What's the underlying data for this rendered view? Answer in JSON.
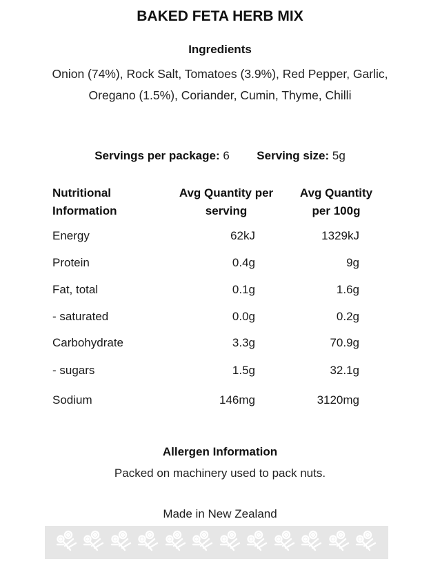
{
  "title": "BAKED FETA HERB MIX",
  "ingredients": {
    "heading": "Ingredients",
    "text": "Onion (74%), Rock Salt, Tomatoes (3.9%), Red Pepper, Garlic, Oregano (1.5%), Coriander, Cumin, Thyme, Chilli"
  },
  "servings": {
    "per_package_label": "Servings per package:",
    "per_package_value": "6",
    "size_label": "Serving size:",
    "size_value": "5g"
  },
  "nutrition": {
    "headers": [
      "Nutritional Information",
      "Avg Quantity per serving",
      "Avg Quantity per 100g"
    ],
    "rows": [
      {
        "name": "Energy",
        "per_serving": "62kJ",
        "per_100g": "1329kJ"
      },
      {
        "name": "Protein",
        "per_serving": "0.4g",
        "per_100g": "9g"
      },
      {
        "name": "Fat, total",
        "per_serving": "0.1g",
        "per_100g": "1.6g"
      },
      {
        "name": "- saturated",
        "per_serving": "0.0g",
        "per_100g": "0.2g"
      },
      {
        "name": "Carbohydrate",
        "per_serving": "3.3g",
        "per_100g": "70.9g"
      },
      {
        "name": "- sugars",
        "per_serving": "1.5g",
        "per_100g": "32.1g"
      },
      {
        "name": "Sodium",
        "per_serving": "146mg",
        "per_100g": "3120mg"
      }
    ]
  },
  "allergen": {
    "heading": "Allergen Information",
    "text": "Packed on machinery used to pack nuts."
  },
  "origin": "Made in New Zealand",
  "decoration": {
    "icon": "flower-icon",
    "count": 12,
    "band_color": "#e6e6e6"
  }
}
